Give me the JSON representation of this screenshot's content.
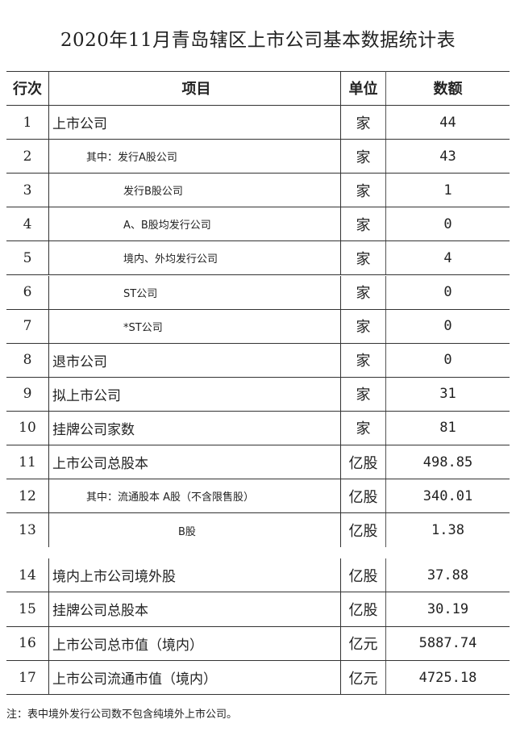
{
  "title": "2020年11月青岛辖区上市公司基本数据统计表",
  "headers": [
    "行次",
    "项目",
    "单位",
    "数额"
  ],
  "rows": [
    {
      "no": "1",
      "item": "上市公司",
      "unit": "家",
      "value": "44",
      "level": 0
    },
    {
      "no": "2",
      "item": "其中：发行A股公司",
      "unit": "家",
      "value": "43",
      "level": 1
    },
    {
      "no": "3",
      "item": "发行B股公司",
      "unit": "家",
      "value": "1",
      "level": 2
    },
    {
      "no": "4",
      "item": "A、B股均发行公司",
      "unit": "家",
      "value": "0",
      "level": 2
    },
    {
      "no": "5",
      "item": "境内、外均发行公司",
      "unit": "家",
      "value": "4",
      "level": 2
    },
    {
      "no": "6",
      "item": "ST公司",
      "unit": "家",
      "value": "0",
      "level": 2
    },
    {
      "no": "7",
      "item": "*ST公司",
      "unit": "家",
      "value": "0",
      "level": 2
    },
    {
      "no": "8",
      "item": "退市公司",
      "unit": "家",
      "value": "0",
      "level": 0
    },
    {
      "no": "9",
      "item": "拟上市公司",
      "unit": "家",
      "value": "31",
      "level": 0
    },
    {
      "no": "10",
      "item": "挂牌公司家数",
      "unit": "家",
      "value": "81",
      "level": 0
    },
    {
      "no": "11",
      "item": "上市公司总股本",
      "unit": "亿股",
      "value": "498.85",
      "level": 0
    },
    {
      "no": "12",
      "item": "其中：流通股本 A股（不含限售股）",
      "unit": "亿股",
      "value": "340.01",
      "level": 1
    },
    {
      "no": "13",
      "item": "B股",
      "unit": "亿股",
      "value": "1.38",
      "level": 3
    },
    {
      "no": "14",
      "item": "境内上市公司境外股",
      "unit": "亿股",
      "value": "37.88",
      "level": 0
    },
    {
      "no": "15",
      "item": "挂牌公司总股本",
      "unit": "亿股",
      "value": "30.19",
      "level": 0
    },
    {
      "no": "16",
      "item": "上市公司总市值（境内）",
      "unit": "亿元",
      "value": "5887.74",
      "level": 0
    },
    {
      "no": "17",
      "item": "上市公司流通市值（境内）",
      "unit": "亿元",
      "value": "4725.18",
      "level": 0
    }
  ],
  "note": "注：表中境外发行公司数不包含纯境外上市公司。"
}
